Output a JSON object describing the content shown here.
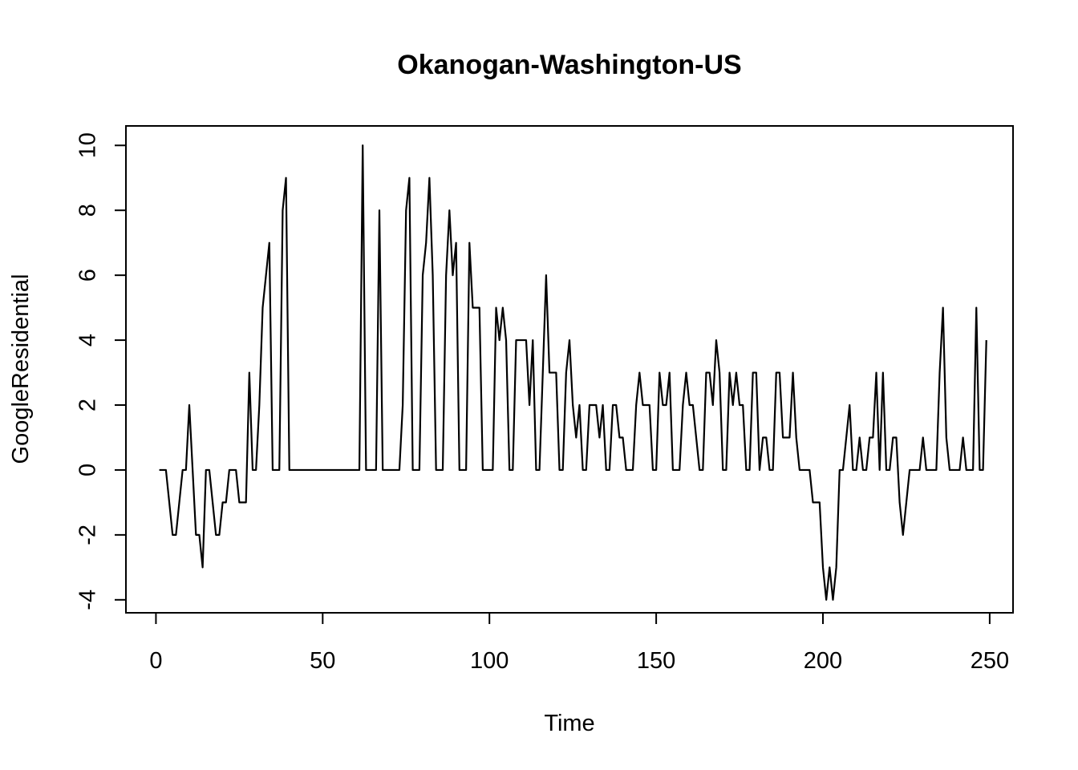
{
  "chart_data": {
    "type": "line",
    "title": "Okanogan-Washington-US",
    "xlabel": "Time",
    "ylabel": "GoogleResidential",
    "xlim": [
      -9,
      257
    ],
    "ylim": [
      -4.4,
      10.6
    ],
    "xticks": [
      0,
      50,
      100,
      150,
      200,
      250
    ],
    "yticks": [
      -4,
      -2,
      0,
      2,
      4,
      6,
      8,
      10
    ],
    "grid": false,
    "legend": "none",
    "series": [
      {
        "x_start": 1,
        "values": [
          0,
          0,
          0,
          -1,
          -2,
          -2,
          -1,
          0,
          0,
          2,
          0,
          -2,
          -2,
          -3,
          0,
          0,
          -1,
          -2,
          -2,
          -1,
          -1,
          0,
          0,
          0,
          -1,
          -1,
          -1,
          3,
          0,
          0,
          2,
          5,
          6,
          7,
          0,
          0,
          0,
          8,
          9,
          0,
          0,
          0,
          0,
          0,
          0,
          0,
          0,
          0,
          0,
          0,
          0,
          0,
          0,
          0,
          0,
          0,
          0,
          0,
          0,
          0,
          0,
          10,
          0,
          0,
          0,
          0,
          8,
          0,
          0,
          0,
          0,
          0,
          0,
          2,
          8,
          9,
          0,
          0,
          0,
          6,
          7,
          9,
          6,
          0,
          0,
          0,
          6,
          8,
          6,
          7,
          0,
          0,
          0,
          7,
          5,
          5,
          5,
          0,
          0,
          0,
          0,
          5,
          4,
          5,
          4,
          0,
          0,
          4,
          4,
          4,
          4,
          2,
          4,
          0,
          0,
          3,
          6,
          3,
          3,
          3,
          0,
          0,
          3,
          4,
          2,
          1,
          2,
          0,
          0,
          2,
          2,
          2,
          1,
          2,
          0,
          0,
          2,
          2,
          1,
          1,
          0,
          0,
          0,
          2,
          3,
          2,
          2,
          2,
          0,
          0,
          3,
          2,
          2,
          3,
          0,
          0,
          0,
          2,
          3,
          2,
          2,
          1,
          0,
          0,
          3,
          3,
          2,
          4,
          3,
          0,
          0,
          3,
          2,
          3,
          2,
          2,
          0,
          0,
          3,
          3,
          0,
          1,
          1,
          0,
          0,
          3,
          3,
          1,
          1,
          1,
          3,
          1,
          0,
          0,
          0,
          0,
          -1,
          -1,
          -1,
          -3,
          -4,
          -3,
          -4,
          -3,
          0,
          0,
          1,
          2,
          0,
          0,
          1,
          0,
          0,
          1,
          1,
          3,
          0,
          3,
          0,
          0,
          1,
          1,
          -1,
          -2,
          -1,
          0,
          0,
          0,
          0,
          1,
          0,
          0,
          0,
          0,
          3,
          5,
          1,
          0,
          0,
          0,
          0,
          1,
          0,
          0,
          0,
          5,
          0,
          0,
          4
        ]
      }
    ]
  }
}
